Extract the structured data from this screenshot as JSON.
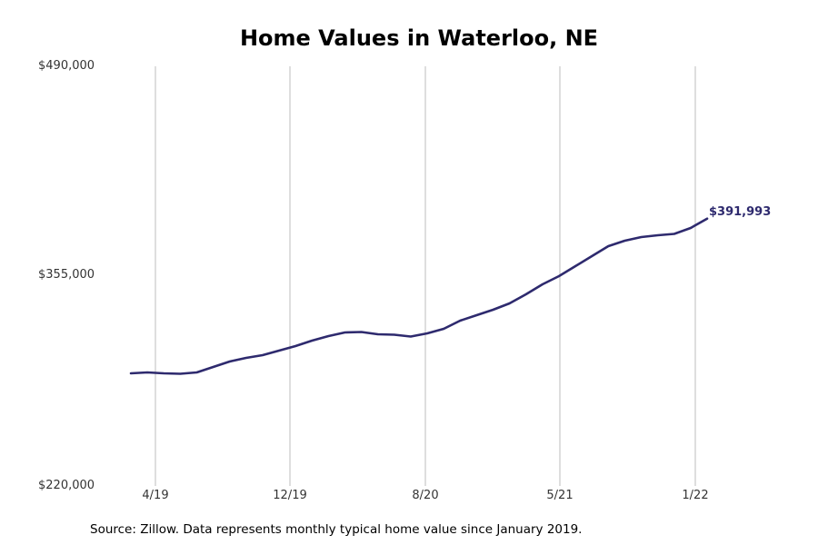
{
  "chart_data": {
    "type": "line",
    "title": "Home Values in Waterloo, NE",
    "xlabel": "",
    "ylabel": "",
    "ylim": [
      220000,
      490000
    ],
    "yticks": [
      "$220,000",
      "$355,000",
      "$490,000"
    ],
    "ytick_values": [
      220000,
      355000,
      490000
    ],
    "xticks": [
      "4/19",
      "12/19",
      "8/20",
      "5/21",
      "1/22"
    ],
    "grid": "vertical",
    "legend": "none",
    "line_color": "#2e2a6e",
    "end_label": "$391,993",
    "series": [
      {
        "name": "Typical home value",
        "values": [
          292470,
          293050,
          292470,
          292180,
          293050,
          296560,
          300070,
          302410,
          304160,
          307080,
          310000,
          313510,
          316430,
          318770,
          319060,
          317600,
          317300,
          316140,
          318190,
          321110,
          326370,
          329880,
          333390,
          337480,
          343320,
          349750,
          355010,
          361440,
          367860,
          374290,
          377800,
          380140,
          381300,
          382180,
          385980,
          391993
        ]
      }
    ]
  },
  "header": {
    "title": "Home Values in Waterloo, NE"
  },
  "axis": {
    "y_labels": [
      "$490,000",
      "$355,000",
      "$220,000"
    ],
    "x_labels": [
      "4/19",
      "12/19",
      "8/20",
      "5/21",
      "1/22"
    ]
  },
  "annotation": {
    "end_value": "$391,993"
  },
  "footer": {
    "source": "Source: Zillow. Data represents monthly typical home value since January 2019."
  }
}
